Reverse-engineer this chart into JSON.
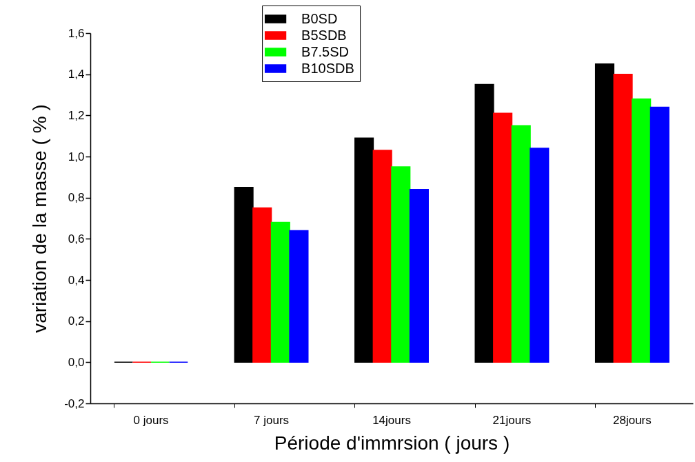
{
  "chart_data": {
    "type": "bar",
    "xlabel": "Période d'immrsion ( jours )",
    "ylabel": "variation de la masse ( % )",
    "categories": [
      "0 jours",
      "7 jours",
      "14jours",
      "21jours",
      "28jours"
    ],
    "series": [
      {
        "name": "B0SD",
        "color": "#000000",
        "values": [
          0,
          0.85,
          1.09,
          1.35,
          1.45
        ]
      },
      {
        "name": "B5SDB",
        "color": "#ff0000",
        "values": [
          0,
          0.75,
          1.03,
          1.21,
          1.4
        ]
      },
      {
        "name": "B7.5SD",
        "color": "#00ff00",
        "values": [
          0,
          0.68,
          0.95,
          1.15,
          1.28
        ]
      },
      {
        "name": "B10SDB",
        "color": "#0000ff",
        "values": [
          0,
          0.64,
          0.84,
          1.04,
          1.24
        ]
      }
    ],
    "ylim": [
      -0.2,
      1.6
    ],
    "yticks": [
      {
        "value": -0.2,
        "label": "-0,2"
      },
      {
        "value": 0,
        "label": "0,0"
      },
      {
        "value": 0.2,
        "label": "0,2"
      },
      {
        "value": 0.4,
        "label": "0,4"
      },
      {
        "value": 0.6,
        "label": "0,6"
      },
      {
        "value": 0.8,
        "label": "0,8"
      },
      {
        "value": 1.0,
        "label": "1,0"
      },
      {
        "value": 1.2,
        "label": "1,2"
      },
      {
        "value": 1.4,
        "label": "1,4"
      },
      {
        "value": 1.6,
        "label": "1,6"
      }
    ],
    "grid": false,
    "legend": "top"
  }
}
